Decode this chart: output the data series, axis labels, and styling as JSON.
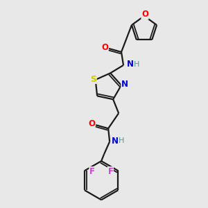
{
  "background_color": "#e8e8e8",
  "bond_color": "#1a1a1a",
  "atom_colors": {
    "O": "#ff0000",
    "N": "#0000cc",
    "S": "#cccc00",
    "F": "#cc44cc",
    "C": "#1a1a1a",
    "H": "#4a9a9a"
  },
  "figsize": [
    3.0,
    3.0
  ],
  "dpi": 100
}
